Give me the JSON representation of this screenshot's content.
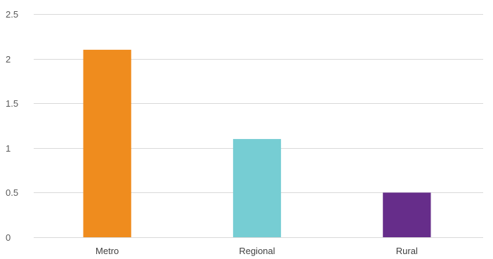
{
  "chart_data": {
    "type": "bar",
    "categories": [
      "Metro",
      "Regional",
      "Rural"
    ],
    "values": [
      2.1,
      1.1,
      0.5
    ],
    "colors": [
      "#ef8c1e",
      "#76cdd3",
      "#662d8a"
    ],
    "ylim": [
      0,
      2.5
    ],
    "yticks": [
      0,
      0.5,
      1,
      1.5,
      2,
      2.5
    ],
    "ytick_labels": [
      "0",
      "0.5",
      "1",
      "1.5",
      "2",
      "2.5"
    ],
    "grid": true,
    "legend": "none"
  }
}
